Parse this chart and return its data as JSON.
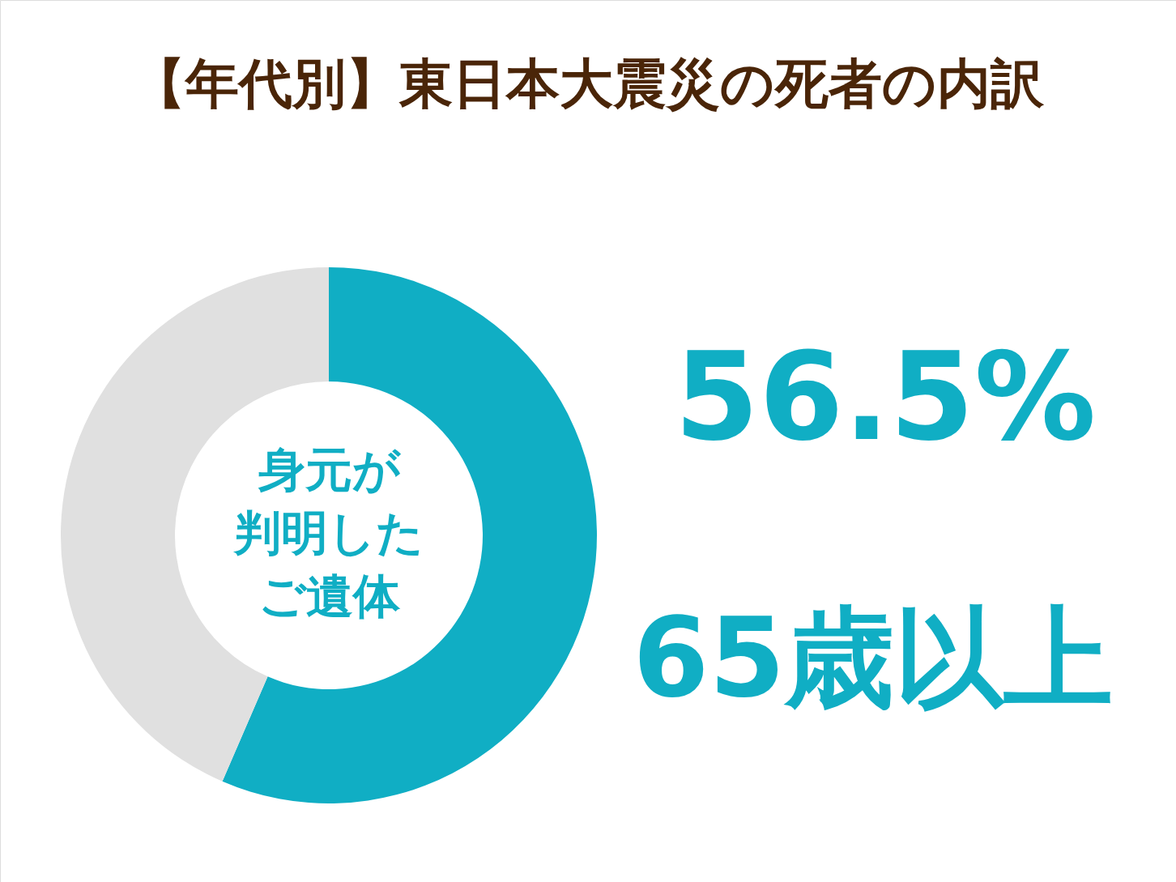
{
  "chart_data": {
    "type": "donut",
    "title": "【年代別】東日本大震災の死者の内訳",
    "categories": [
      "65歳以上",
      null
    ],
    "values": [
      56.5,
      43.5
    ],
    "colors": [
      "#10aec4",
      "#e0e0e0"
    ],
    "value_labels": [
      "56.5%",
      null
    ],
    "annotations": [
      "身元が判明したご遺体"
    ],
    "legend": false
  }
}
